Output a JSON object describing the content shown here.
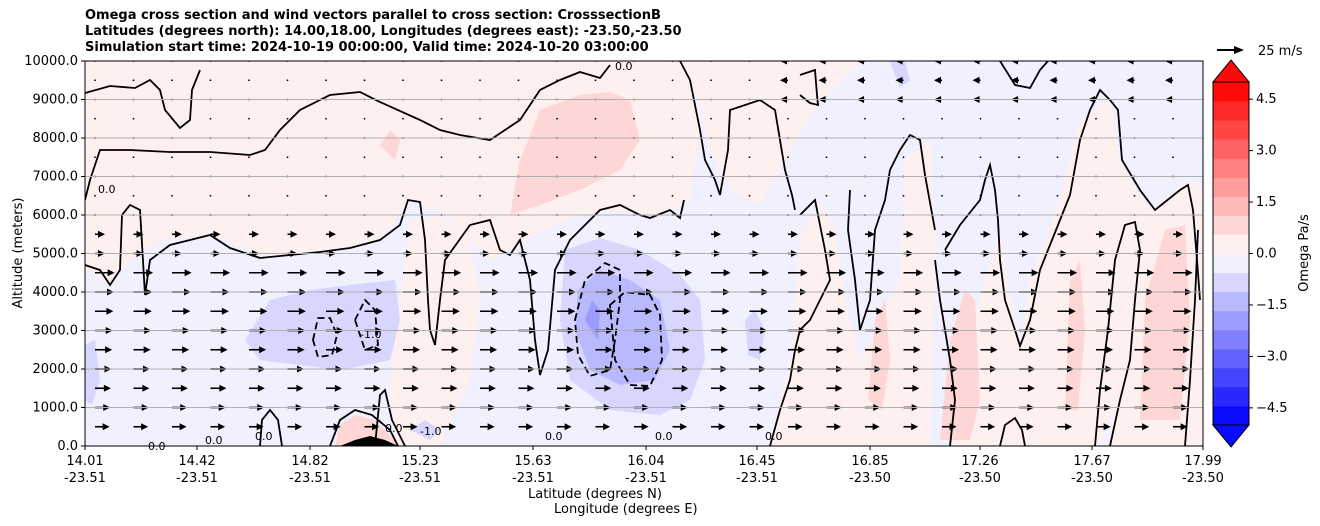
{
  "chart_data": {
    "type": "contourf",
    "title_lines": [
      "Omega cross section and wind vectors parallel to cross section: CrosssectionB",
      "Latitudes (degrees north): 14.00,18.00, Longitudes (degrees east): -23.50,-23.50",
      "Simulation start time: 2024-10-19 00:00:00, Valid time: 2024-10-20 03:00:00"
    ],
    "ylabel": "Altitude (meters)",
    "xlabel_1": "Latitude (degrees N)",
    "xlabel_2": "Longitude (degrees E)",
    "ylim": [
      0,
      10000
    ],
    "yticks": [
      "0.0",
      "1000.0",
      "2000.0",
      "3000.0",
      "4000.0",
      "5000.0",
      "6000.0",
      "7000.0",
      "8000.0",
      "9000.0",
      "10000.0"
    ],
    "xticks": [
      {
        "lat": "14.01",
        "lon": "-23.51"
      },
      {
        "lat": "14.42",
        "lon": "-23.51"
      },
      {
        "lat": "14.82",
        "lon": "-23.51"
      },
      {
        "lat": "15.23",
        "lon": "-23.51"
      },
      {
        "lat": "15.63",
        "lon": "-23.51"
      },
      {
        "lat": "16.04",
        "lon": "-23.51"
      },
      {
        "lat": "16.45",
        "lon": "-23.51"
      },
      {
        "lat": "16.85",
        "lon": "-23.50"
      },
      {
        "lat": "17.26",
        "lon": "-23.50"
      },
      {
        "lat": "17.67",
        "lon": "-23.50"
      },
      {
        "lat": "17.99",
        "lon": "-23.50"
      }
    ],
    "grid": "horizontal",
    "colorbar": {
      "label": "Omega Pa/s",
      "ticks": [
        "4.5",
        "3.0",
        "1.5",
        "0.0",
        "−1.5",
        "−3.0",
        "−4.5"
      ],
      "range": [
        -5,
        5
      ],
      "colors": [
        "#0a0aff",
        "#2828ff",
        "#4545ff",
        "#6262ff",
        "#7f7fff",
        "#9c9cff",
        "#b9b9ff",
        "#d6d6ff",
        "#f0f0ff",
        "#fff0f0",
        "#ffd6d6",
        "#ffb9b9",
        "#ff9c9c",
        "#ff7f7f",
        "#ff6262",
        "#ff4545",
        "#ff2828",
        "#ff0a0a"
      ]
    },
    "quiver_key": "25 m/s",
    "contour_labels": [
      "0.0",
      "-1.0"
    ]
  }
}
